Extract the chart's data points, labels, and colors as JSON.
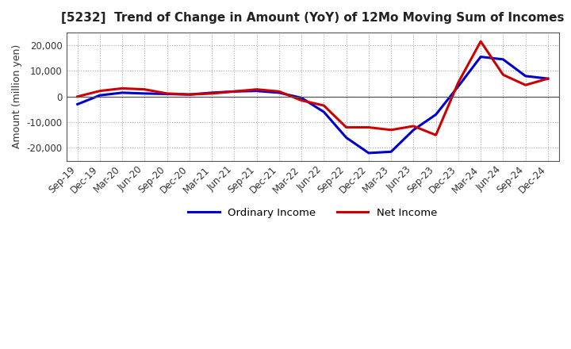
{
  "title": "[5232]  Trend of Change in Amount (YoY) of 12Mo Moving Sum of Incomes",
  "ylabel": "Amount (million yen)",
  "title_color": "#222222",
  "background_color": "#ffffff",
  "grid_color": "#aaaaaa",
  "xlabels": [
    "Sep-19",
    "Dec-19",
    "Mar-20",
    "Jun-20",
    "Sep-20",
    "Dec-20",
    "Mar-21",
    "Jun-21",
    "Sep-21",
    "Dec-21",
    "Mar-22",
    "Jun-22",
    "Sep-22",
    "Dec-22",
    "Mar-23",
    "Jun-23",
    "Sep-23",
    "Dec-23",
    "Mar-24",
    "Jun-24",
    "Sep-24",
    "Dec-24"
  ],
  "ordinary_income": [
    -3000,
    500,
    1500,
    1200,
    1000,
    800,
    1500,
    2000,
    2200,
    1500,
    -500,
    -6000,
    -16000,
    -22000,
    -21500,
    -13000,
    -7000,
    4000,
    15500,
    14500,
    8000,
    7000
  ],
  "net_income": [
    0,
    2200,
    3200,
    2800,
    1200,
    800,
    1200,
    2000,
    2800,
    2000,
    -1500,
    -3500,
    -12000,
    -12000,
    -13000,
    -11500,
    -15000,
    5500,
    21500,
    8500,
    4500,
    7000
  ],
  "ordinary_income_color": "#0000cc",
  "net_income_color": "#cc0000",
  "ylim": [
    -25000,
    25000
  ],
  "yticks": [
    -20000,
    -10000,
    0,
    10000,
    20000
  ],
  "line_width": 2.2
}
